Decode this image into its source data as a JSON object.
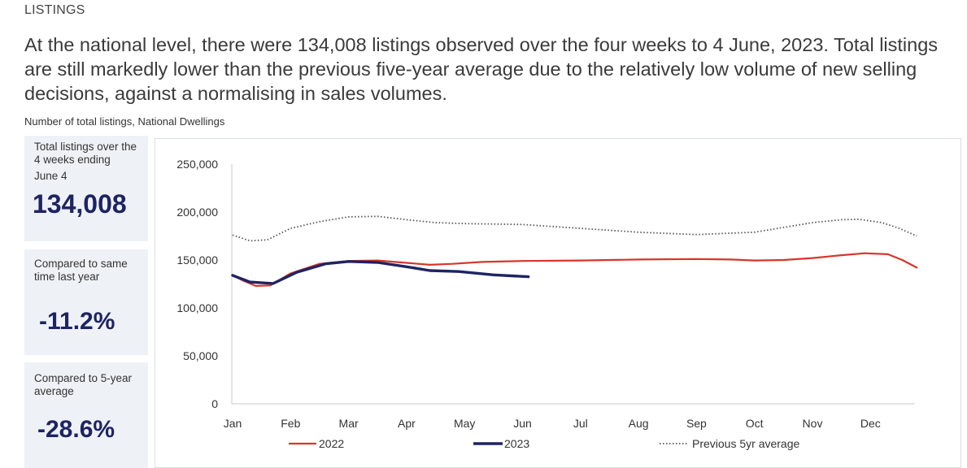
{
  "section_label": "LISTINGS",
  "intro_text": "At the national level, there were 134,008 listings observed over the four weeks to 4 June, 2023. Total listings are still markedly lower than the previous five-year average due to the relatively low volume of new selling decisions, against a normalising in sales volumes.",
  "chart_subtitle": "Number of total listings, National Dwellings",
  "cards": [
    {
      "label": "Total listings over the 4 weeks ending",
      "sublabel": "June 4",
      "value": "134,008"
    },
    {
      "label": "Compared to same time last year",
      "value": "-11.2%"
    },
    {
      "label": "Compared to 5-year average",
      "value": "-28.6%"
    }
  ],
  "colors": {
    "accent_navy": "#1e2461",
    "series_2022": "#d8352a",
    "series_2023": "#1e2461",
    "series_5yr": "#555555"
  },
  "chart_data": {
    "type": "line",
    "x_ticks": [
      "Jan",
      "Feb",
      "Mar",
      "Apr",
      "May",
      "Jun",
      "Jul",
      "Aug",
      "Sep",
      "Oct",
      "Nov",
      "Dec"
    ],
    "y_ticks": [
      "250,000",
      "200,000",
      "150,000",
      "100,000",
      "50,000",
      "0"
    ],
    "ylim": [
      0,
      250000
    ],
    "xlim": [
      0,
      11.8
    ],
    "grid": false,
    "legend_position": "bottom",
    "series": [
      {
        "name": "2022",
        "style": "solid-thin",
        "color": "#d8352a",
        "points": [
          [
            0,
            134000
          ],
          [
            0.2,
            128000
          ],
          [
            0.4,
            123000
          ],
          [
            0.65,
            123500
          ],
          [
            1.0,
            136000
          ],
          [
            1.5,
            146000
          ],
          [
            2.0,
            149000
          ],
          [
            2.5,
            149500
          ],
          [
            3.0,
            147000
          ],
          [
            3.4,
            145000
          ],
          [
            3.8,
            146000
          ],
          [
            4.3,
            148000
          ],
          [
            5.0,
            149000
          ],
          [
            6.0,
            149500
          ],
          [
            7.0,
            150500
          ],
          [
            8.0,
            151000
          ],
          [
            8.6,
            150500
          ],
          [
            9.0,
            149500
          ],
          [
            9.5,
            150000
          ],
          [
            10.0,
            152000
          ],
          [
            10.5,
            155000
          ],
          [
            10.9,
            157000
          ],
          [
            11.3,
            156000
          ],
          [
            11.55,
            150000
          ],
          [
            11.8,
            142000
          ]
        ]
      },
      {
        "name": "2023",
        "style": "solid-thick",
        "color": "#1e2461",
        "points": [
          [
            0,
            134000
          ],
          [
            0.3,
            127000
          ],
          [
            0.7,
            125500
          ],
          [
            1.1,
            137000
          ],
          [
            1.6,
            146000
          ],
          [
            2.0,
            148500
          ],
          [
            2.5,
            147500
          ],
          [
            3.0,
            143000
          ],
          [
            3.4,
            139000
          ],
          [
            3.9,
            138000
          ],
          [
            4.5,
            134500
          ],
          [
            5.1,
            132500
          ]
        ]
      },
      {
        "name": "Previous 5yr average",
        "style": "dotted",
        "color": "#555555",
        "points": [
          [
            0,
            176000
          ],
          [
            0.3,
            170000
          ],
          [
            0.6,
            171000
          ],
          [
            1.0,
            183000
          ],
          [
            1.5,
            190000
          ],
          [
            2.0,
            195000
          ],
          [
            2.5,
            195500
          ],
          [
            3.0,
            192000
          ],
          [
            3.5,
            189000
          ],
          [
            4.0,
            188000
          ],
          [
            5.0,
            187000
          ],
          [
            6.0,
            183000
          ],
          [
            7.0,
            179000
          ],
          [
            8.0,
            176500
          ],
          [
            9.0,
            179000
          ],
          [
            9.6,
            185000
          ],
          [
            10.0,
            189000
          ],
          [
            10.5,
            192000
          ],
          [
            10.8,
            192500
          ],
          [
            11.2,
            189000
          ],
          [
            11.5,
            183000
          ],
          [
            11.8,
            175000
          ]
        ]
      }
    ]
  }
}
